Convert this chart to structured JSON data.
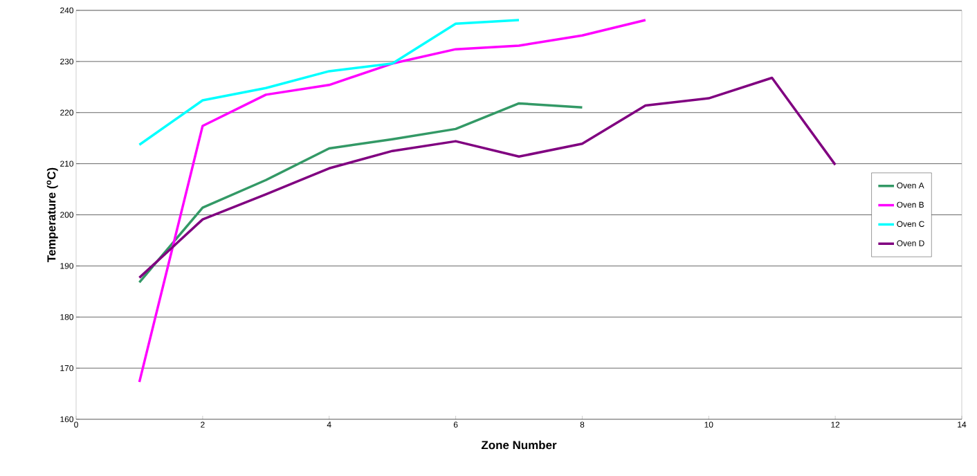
{
  "chart_data": {
    "type": "line",
    "xlabel": "Zone Number",
    "ylabel": "Temperature ($^{o}$C)",
    "xlim": [
      0,
      14
    ],
    "ylim": [
      160,
      240
    ],
    "xticks": [
      0,
      2,
      4,
      6,
      8,
      10,
      12,
      14
    ],
    "yticks": [
      160,
      170,
      180,
      190,
      200,
      210,
      220,
      230,
      240
    ],
    "grid": "y",
    "legend": "right",
    "marker": "none",
    "line_style": "solid",
    "series": [
      {
        "name": "Oven A",
        "color": "#339966",
        "x": [
          1,
          2,
          3,
          4,
          5,
          6,
          7,
          8
        ],
        "values": [
          186.8,
          201.4,
          206.8,
          213.0,
          214.8,
          216.8,
          221.8,
          221.0
        ]
      },
      {
        "name": "Oven B",
        "color": "#ff00ff",
        "x": [
          1,
          2,
          3,
          4,
          5,
          6,
          7,
          8,
          9
        ],
        "values": [
          167.3,
          217.4,
          223.5,
          225.4,
          229.6,
          232.4,
          233.1,
          235.1,
          238.1
        ]
      },
      {
        "name": "Oven C",
        "color": "#00ffff",
        "x": [
          1,
          2,
          3,
          4,
          5,
          6,
          7
        ],
        "values": [
          213.7,
          222.4,
          224.8,
          228.1,
          229.6,
          237.4,
          238.1
        ]
      },
      {
        "name": "Oven D",
        "color": "#800080",
        "x": [
          1,
          2,
          3,
          4,
          5,
          6,
          7,
          8,
          9,
          10,
          11,
          12
        ],
        "values": [
          187.7,
          199.1,
          204.0,
          209.1,
          212.5,
          214.4,
          211.4,
          213.9,
          221.4,
          222.8,
          226.8,
          209.8
        ]
      }
    ]
  }
}
